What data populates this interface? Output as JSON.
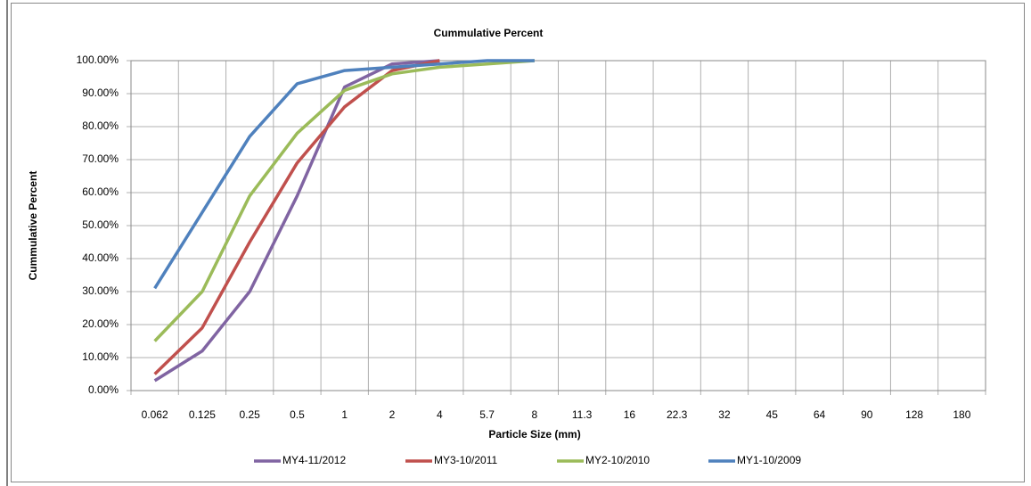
{
  "chart_data": {
    "type": "line",
    "title": "Cummulative Percent",
    "x_label": "Particle Size (mm)",
    "y_label": "Cummulative Percent",
    "categories": [
      "0.062",
      "0.125",
      "0.25",
      "0.5",
      "1",
      "2",
      "4",
      "5.7",
      "8",
      "11.3",
      "16",
      "22.3",
      "32",
      "45",
      "64",
      "90",
      "128",
      "180"
    ],
    "series": [
      {
        "name": "MY4-11/2012",
        "color": "#8064a2",
        "values": [
          3,
          12,
          30,
          59,
          92,
          99,
          100,
          null,
          null,
          null,
          null,
          null,
          null,
          null,
          null,
          null,
          null,
          null
        ]
      },
      {
        "name": "MY3-10/2011",
        "color": "#c0504d",
        "values": [
          5,
          19,
          45,
          69,
          86,
          97,
          100,
          null,
          null,
          null,
          null,
          null,
          null,
          null,
          null,
          null,
          null,
          null
        ]
      },
      {
        "name": "MY2-10/2010",
        "color": "#9bbb59",
        "values": [
          15,
          30,
          59,
          78,
          91,
          96,
          98,
          99,
          100,
          null,
          null,
          null,
          null,
          null,
          null,
          null,
          null,
          null
        ]
      },
      {
        "name": "MY1-10/2009",
        "color": "#4f81bd",
        "values": [
          31,
          54,
          77,
          93,
          97,
          98,
          99,
          100,
          100,
          null,
          null,
          null,
          null,
          null,
          null,
          null,
          null,
          null
        ]
      }
    ],
    "ylim": [
      0,
      100
    ],
    "yticks": [
      {
        "value": 0,
        "label": "0.00%"
      },
      {
        "value": 10,
        "label": "10.00%"
      },
      {
        "value": 20,
        "label": "20.00%"
      },
      {
        "value": 30,
        "label": "30.00%"
      },
      {
        "value": 40,
        "label": "40.00%"
      },
      {
        "value": 50,
        "label": "50.00%"
      },
      {
        "value": 60,
        "label": "60.00%"
      },
      {
        "value": 70,
        "label": "70.00%"
      },
      {
        "value": 80,
        "label": "80.00%"
      },
      {
        "value": 90,
        "label": "90.00%"
      },
      {
        "value": 100,
        "label": "100.00%"
      }
    ],
    "grid": true,
    "legend": "bottom"
  }
}
